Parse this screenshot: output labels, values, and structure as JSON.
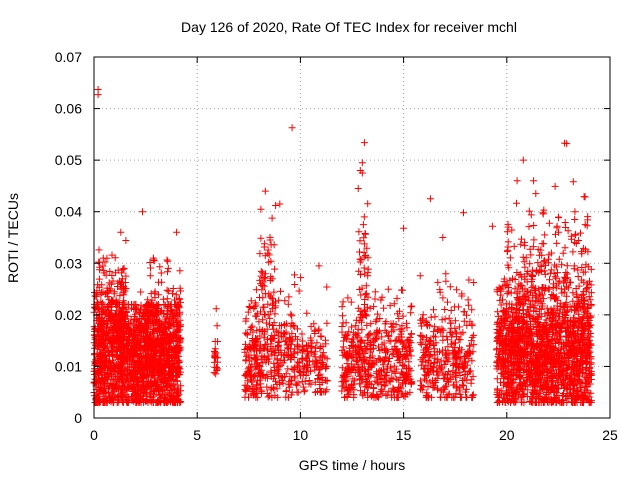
{
  "chart_data": {
    "type": "scatter",
    "title": "Day 126 of 2020, Rate Of TEC Index for receiver mchl",
    "xlabel": "GPS time / hours",
    "ylabel": "ROTI / TECUs",
    "xlim": [
      0,
      25
    ],
    "ylim": [
      0,
      0.07
    ],
    "xticks": [
      "0",
      "5",
      "10",
      "15",
      "20",
      "25"
    ],
    "yticks": [
      "0",
      "0.01",
      "0.02",
      "0.03",
      "0.04",
      "0.05",
      "0.06",
      "0.07"
    ],
    "grid": true,
    "marker": "+",
    "color": "#ff0000",
    "series": [
      {
        "name": "ROTI",
        "clusters": [
          {
            "x": [
              0.0,
              4.2
            ],
            "ylo": 0.003,
            "yhi": 0.022,
            "n": 1600,
            "core": 0.012
          },
          {
            "x": [
              0.0,
              1.6
            ],
            "ylo": 0.015,
            "yhi": 0.035,
            "n": 200,
            "core": 0.022
          },
          {
            "x": [
              2.2,
              4.2
            ],
            "ylo": 0.015,
            "yhi": 0.032,
            "n": 120,
            "core": 0.02
          },
          {
            "x": [
              5.8,
              6.0
            ],
            "ylo": 0.007,
            "yhi": 0.025,
            "n": 25,
            "core": 0.012
          },
          {
            "x": [
              7.3,
              9.6
            ],
            "ylo": 0.004,
            "yhi": 0.025,
            "n": 320,
            "core": 0.012
          },
          {
            "x": [
              8.0,
              8.8
            ],
            "ylo": 0.02,
            "yhi": 0.043,
            "n": 45,
            "core": 0.028
          },
          {
            "x": [
              9.6,
              11.3
            ],
            "ylo": 0.005,
            "yhi": 0.028,
            "n": 160,
            "core": 0.011
          },
          {
            "x": [
              12.0,
              15.4
            ],
            "ylo": 0.004,
            "yhi": 0.025,
            "n": 480,
            "core": 0.011
          },
          {
            "x": [
              12.8,
              13.3
            ],
            "ylo": 0.02,
            "yhi": 0.047,
            "n": 40,
            "core": 0.03
          },
          {
            "x": [
              15.8,
              18.4
            ],
            "ylo": 0.004,
            "yhi": 0.028,
            "n": 340,
            "core": 0.011
          },
          {
            "x": [
              19.5,
              24.1
            ],
            "ylo": 0.003,
            "yhi": 0.03,
            "n": 1700,
            "core": 0.013
          },
          {
            "x": [
              20.0,
              24.0
            ],
            "ylo": 0.025,
            "yhi": 0.046,
            "n": 110,
            "core": 0.032
          }
        ],
        "outliers": [
          [
            0.2,
            0.0637
          ],
          [
            0.2,
            0.0627
          ],
          [
            9.6,
            0.0563
          ],
          [
            13.1,
            0.0534
          ],
          [
            22.8,
            0.0533
          ],
          [
            22.9,
            0.0532
          ],
          [
            20.8,
            0.05
          ],
          [
            13.0,
            0.0495
          ],
          [
            12.9,
            0.048
          ],
          [
            13.0,
            0.0475
          ],
          [
            12.8,
            0.0445
          ],
          [
            21.3,
            0.046
          ],
          [
            20.5,
            0.046
          ],
          [
            8.3,
            0.044
          ],
          [
            9.0,
            0.0415
          ],
          [
            16.3,
            0.0425
          ],
          [
            17.9,
            0.0398
          ],
          [
            2.35,
            0.04
          ],
          [
            19.3,
            0.0372
          ],
          [
            23.3,
            0.04
          ],
          [
            23.8,
            0.0375
          ],
          [
            4.0,
            0.036
          ],
          [
            1.3,
            0.036
          ],
          [
            13.05,
            0.0375
          ],
          [
            10.9,
            0.0295
          ],
          [
            15.0,
            0.0368
          ],
          [
            16.9,
            0.035
          ]
        ]
      }
    ]
  }
}
